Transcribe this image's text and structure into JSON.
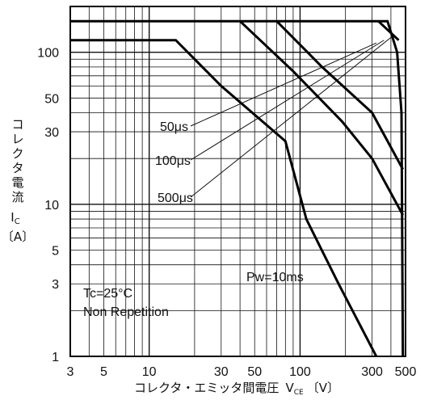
{
  "chart_data": {
    "type": "line",
    "title": "",
    "x_scale": "log",
    "y_scale": "log",
    "xlim": [
      3,
      500
    ],
    "ylim": [
      1,
      200
    ],
    "grid": true,
    "x_ticks": [
      3,
      5,
      10,
      30,
      50,
      100,
      300,
      500
    ],
    "x_tick_labels": [
      "3",
      "5",
      "10",
      "30",
      "50",
      "100",
      "300",
      "500"
    ],
    "y_ticks": [
      1,
      3,
      5,
      10,
      30,
      50,
      100
    ],
    "y_tick_labels": [
      "1",
      "3",
      "5",
      "10",
      "30",
      "50",
      "100"
    ],
    "xlabel": {
      "text": "コレクタ・エミッタ間電圧",
      "symbol": "V",
      "subscript": "CE",
      "unit": "〔V〕"
    },
    "ylabel": {
      "chars": [
        "コ",
        "レ",
        "ク",
        "タ",
        "電",
        "流"
      ],
      "symbol": "I",
      "subscript": "C",
      "unit": "〔A〕"
    },
    "series": [
      {
        "name": "Pw=10ms",
        "points": [
          [
            3,
            120
          ],
          [
            15,
            120
          ],
          [
            30,
            60
          ],
          [
            80,
            26
          ],
          [
            110,
            8
          ],
          [
            180,
            3
          ],
          [
            320,
            1
          ]
        ]
      },
      {
        "name": "500μs",
        "points": [
          [
            40,
            160
          ],
          [
            90,
            75
          ],
          [
            190,
            35
          ],
          [
            300,
            20
          ],
          [
            480,
            8.5
          ]
        ]
      },
      {
        "name": "100μs",
        "points": [
          [
            70,
            160
          ],
          [
            140,
            80
          ],
          [
            300,
            40
          ],
          [
            480,
            17
          ]
        ]
      },
      {
        "name": "50μs",
        "points": [
          [
            3,
            160
          ],
          [
            380,
            160
          ],
          [
            440,
            100
          ],
          [
            470,
            40
          ],
          [
            480,
            1
          ]
        ]
      },
      {
        "name": "",
        "points": [
          [
            330,
            160
          ],
          [
            450,
            120
          ]
        ]
      }
    ],
    "annotations": {
      "pulse_labels": [
        {
          "text": "50μs",
          "target": [
            320,
            115
          ]
        },
        {
          "text": "100μs",
          "target": [
            360,
            120
          ]
        },
        {
          "text": "500μs",
          "target": [
            400,
            125
          ]
        }
      ],
      "pw_label": "Pw=10ms",
      "conditions": [
        "Tc=25°C",
        "Non Repetition"
      ]
    }
  }
}
